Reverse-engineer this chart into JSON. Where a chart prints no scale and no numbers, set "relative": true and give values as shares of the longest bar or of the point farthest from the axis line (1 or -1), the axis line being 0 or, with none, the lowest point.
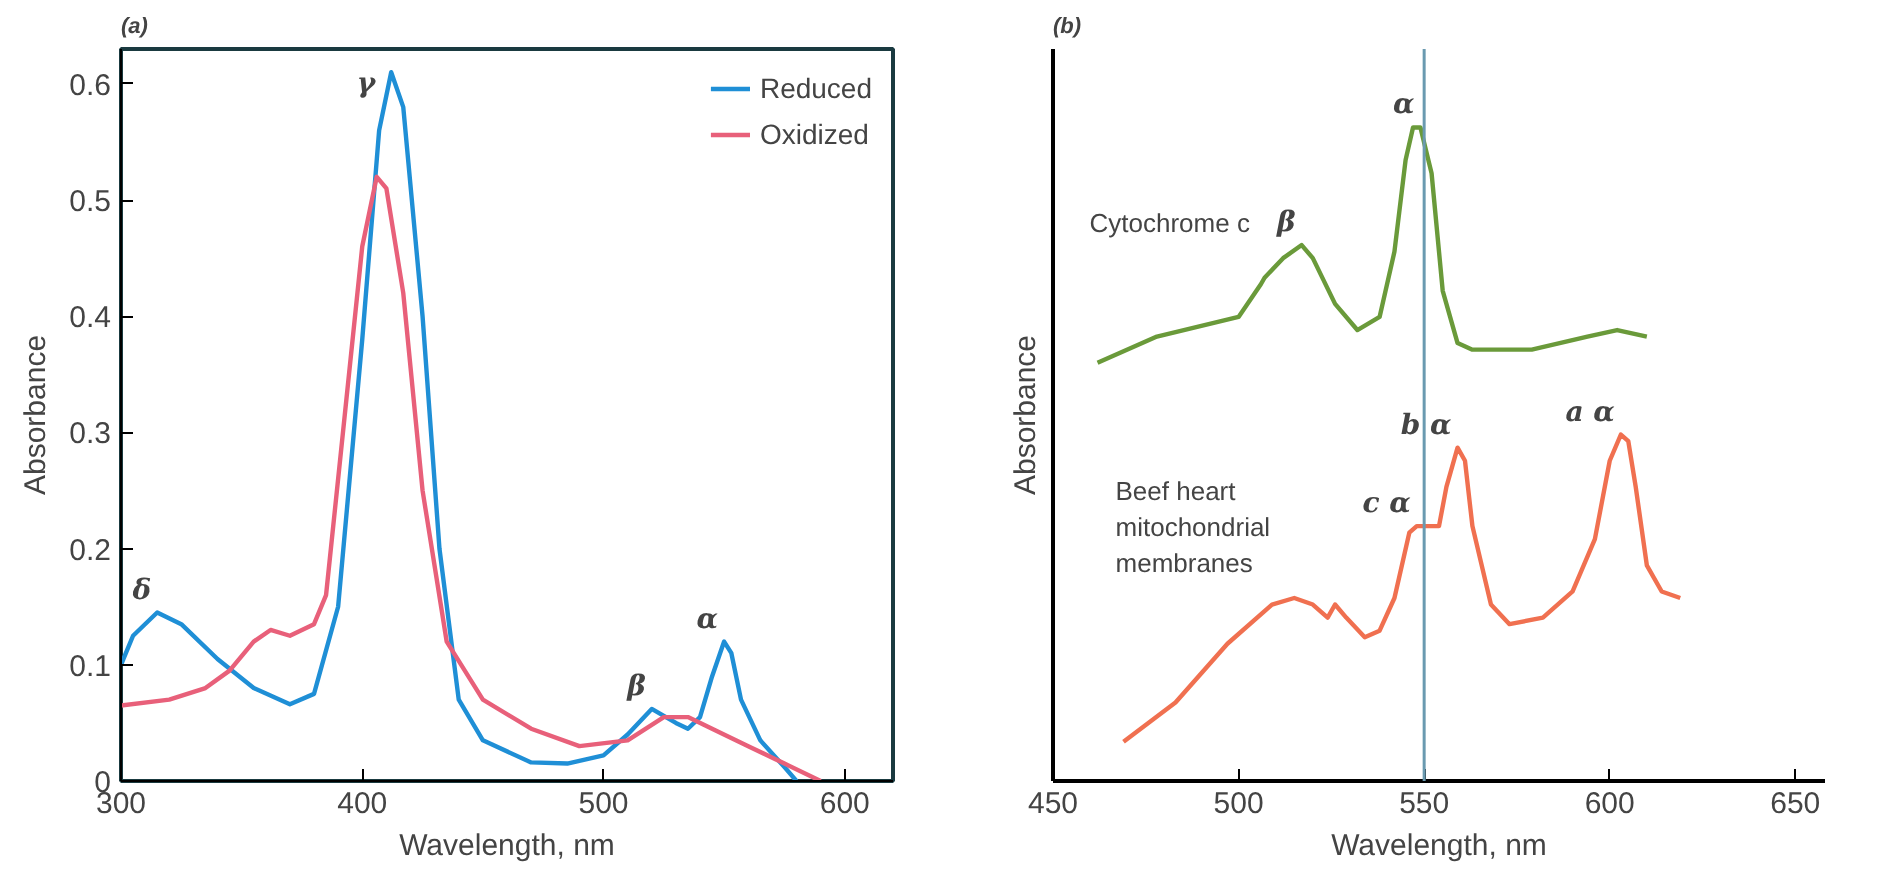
{
  "chart_data": [
    {
      "type": "line",
      "title": "(a)",
      "xlabel": "Wavelength, nm",
      "ylabel": "Absorbance",
      "xlim": [
        300,
        620
      ],
      "ylim": [
        0,
        0.63
      ],
      "xticks": [
        300,
        400,
        500,
        600
      ],
      "yticks": [
        0,
        0.1,
        0.2,
        0.3,
        0.4,
        0.5,
        0.6
      ],
      "grid": false,
      "legend": "top right",
      "line_style": "solid",
      "series": [
        {
          "name": "Reduced",
          "color": "#1f8fd6",
          "x": [
            300,
            305,
            315,
            325,
            340,
            355,
            370,
            380,
            390,
            400,
            407,
            412,
            417,
            425,
            432,
            440,
            450,
            470,
            485,
            500,
            510,
            520,
            530,
            535,
            540,
            545,
            550,
            553,
            557,
            565,
            575,
            580
          ],
          "values": [
            0.1,
            0.125,
            0.145,
            0.135,
            0.105,
            0.08,
            0.066,
            0.075,
            0.15,
            0.38,
            0.56,
            0.61,
            0.58,
            0.4,
            0.2,
            0.07,
            0.035,
            0.016,
            0.015,
            0.022,
            0.04,
            0.062,
            0.05,
            0.045,
            0.055,
            0.09,
            0.12,
            0.11,
            0.07,
            0.035,
            0.012,
            0.0
          ]
        },
        {
          "name": "Oxidized",
          "color": "#e8607a",
          "x": [
            300,
            320,
            335,
            345,
            355,
            362,
            370,
            380,
            385,
            392,
            400,
            406,
            410,
            417,
            425,
            435,
            450,
            470,
            490,
            510,
            525,
            535,
            545,
            560,
            575,
            590
          ],
          "values": [
            0.065,
            0.07,
            0.08,
            0.095,
            0.12,
            0.13,
            0.125,
            0.135,
            0.16,
            0.3,
            0.46,
            0.52,
            0.51,
            0.42,
            0.25,
            0.12,
            0.07,
            0.045,
            0.03,
            0.035,
            0.055,
            0.055,
            0.045,
            0.03,
            0.015,
            0.0
          ]
        }
      ],
      "annotations": [
        {
          "text": "δ",
          "x": 315,
          "y": 0.145
        },
        {
          "text": "γ",
          "x": 412,
          "y": 0.61
        },
        {
          "text": "β",
          "x": 520,
          "y": 0.062
        },
        {
          "text": "α",
          "x": 550,
          "y": 0.12
        }
      ]
    },
    {
      "type": "line",
      "title": "(b)",
      "xlabel": "Wavelength, nm",
      "ylabel": "Absorbance",
      "xlim": [
        450,
        658
      ],
      "xticks": [
        450,
        500,
        550,
        600,
        650
      ],
      "relative": true,
      "grid": false,
      "legend": false,
      "line_style": "solid",
      "ref_lines": [
        {
          "axis": "x",
          "value": 550,
          "color": "#6a9ab0"
        }
      ],
      "series": [
        {
          "name": "Cytochrome c",
          "color": "#6a9a3a",
          "x": [
            462,
            478,
            500,
            506,
            507,
            512,
            517,
            520,
            526,
            532,
            538,
            542,
            545,
            547,
            549,
            552,
            555,
            559,
            563,
            579,
            594,
            602,
            610
          ],
          "values": [
            0.64,
            0.68,
            0.71,
            0.76,
            0.77,
            0.8,
            0.82,
            0.8,
            0.73,
            0.69,
            0.71,
            0.81,
            0.95,
            1.0,
            1.0,
            0.93,
            0.75,
            0.67,
            0.66,
            0.66,
            0.68,
            0.69,
            0.68
          ]
        },
        {
          "name": "Beef heart mitochondrial membranes",
          "color": "#f07050",
          "x": [
            469,
            483,
            497,
            509,
            515,
            520,
            524,
            526,
            529,
            534,
            538,
            542,
            546,
            548,
            554,
            556,
            559,
            561,
            563,
            568,
            573,
            582,
            590,
            596,
            600,
            603,
            605,
            607,
            610,
            614,
            619
          ],
          "values": [
            0.06,
            0.12,
            0.21,
            0.27,
            0.28,
            0.27,
            0.25,
            0.27,
            0.25,
            0.22,
            0.23,
            0.28,
            0.38,
            0.39,
            0.39,
            0.45,
            0.51,
            0.49,
            0.39,
            0.27,
            0.24,
            0.25,
            0.29,
            0.37,
            0.49,
            0.53,
            0.52,
            0.45,
            0.33,
            0.29,
            0.28
          ]
        }
      ],
      "annotations": [
        {
          "text": "α",
          "x": 549,
          "y": 1.0
        },
        {
          "text": "β",
          "x": 517,
          "y": 0.82
        },
        {
          "text": "c α",
          "x": 548,
          "y": 0.39
        },
        {
          "text": "b α",
          "x": 559,
          "y": 0.51
        },
        {
          "text": "a α",
          "x": 603,
          "y": 0.53
        }
      ]
    }
  ]
}
